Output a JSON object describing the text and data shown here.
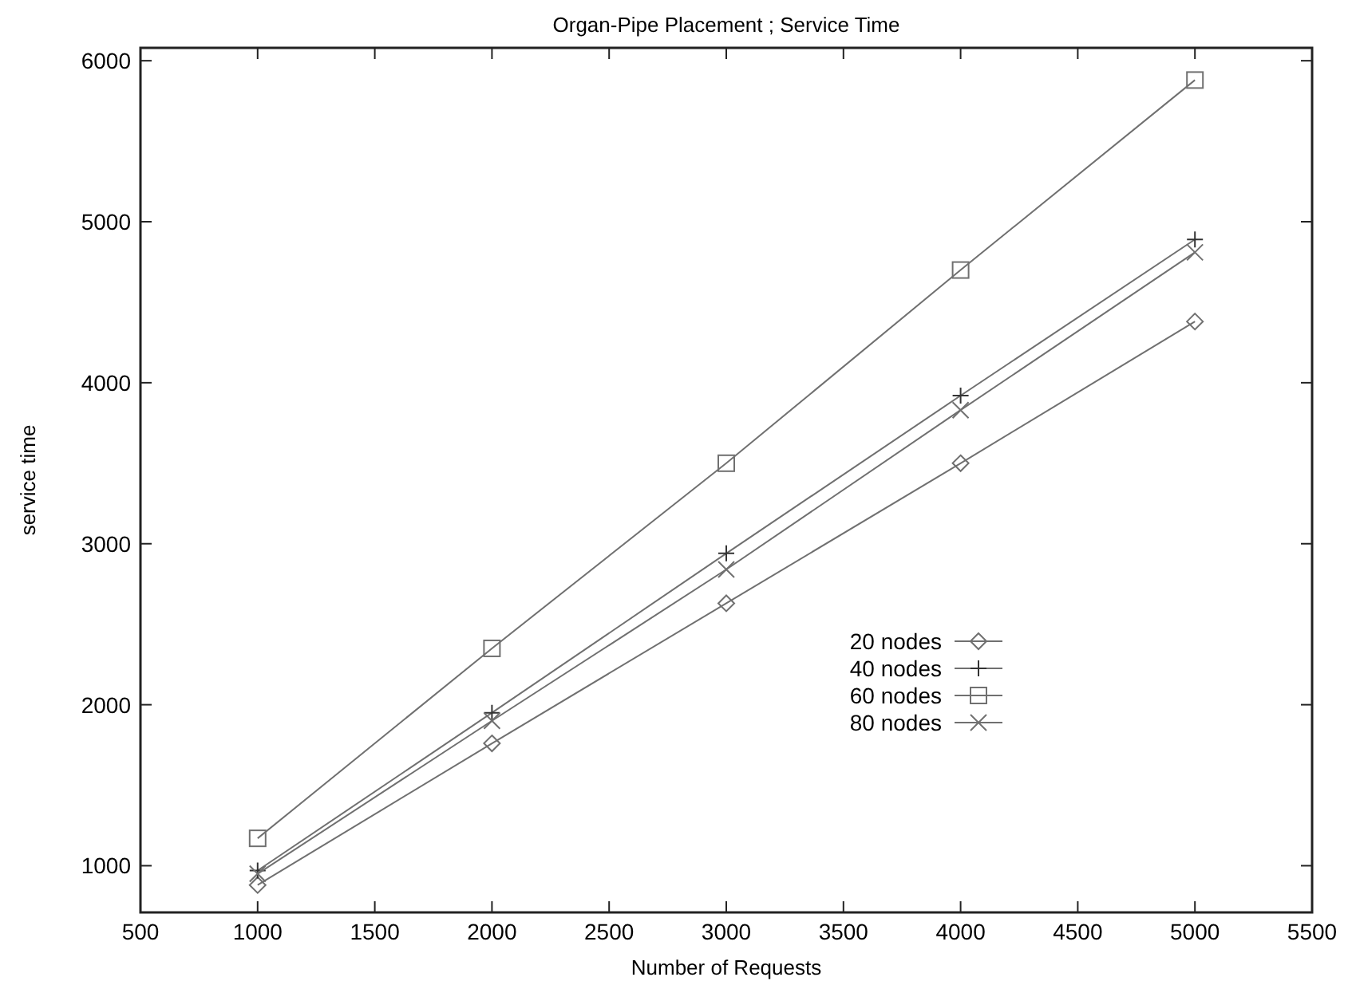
{
  "chart_data": {
    "type": "line",
    "title": "Organ-Pipe Placement ; Service Time",
    "xlabel": "Number of Requests",
    "ylabel": "service  time",
    "x": [
      1000,
      2000,
      3000,
      4000,
      5000
    ],
    "series": [
      {
        "name": "20 nodes",
        "color": "#707070",
        "marker": "diamond",
        "values": [
          880,
          1760,
          2630,
          3500,
          4380
        ]
      },
      {
        "name": "40 nodes",
        "color": "#707070",
        "marker": "plus",
        "values": [
          970,
          1950,
          2940,
          3920,
          4890
        ]
      },
      {
        "name": "60 nodes",
        "color": "#707070",
        "marker": "square",
        "values": [
          1170,
          2350,
          3500,
          4700,
          5880
        ]
      },
      {
        "name": "80 nodes",
        "color": "#707070",
        "marker": "cross",
        "values": [
          950,
          1900,
          2840,
          3830,
          4810
        ]
      }
    ],
    "xlim": [
      500,
      5500
    ],
    "xticks": [
      500,
      1000,
      1500,
      2000,
      2500,
      3000,
      3500,
      4000,
      4500,
      5000,
      5500
    ],
    "ylim": [
      710,
      6080
    ],
    "yticks": [
      1000,
      2000,
      3000,
      4000,
      5000,
      6000
    ],
    "grid": false,
    "legend": "bottom right",
    "line_style": "solid"
  }
}
